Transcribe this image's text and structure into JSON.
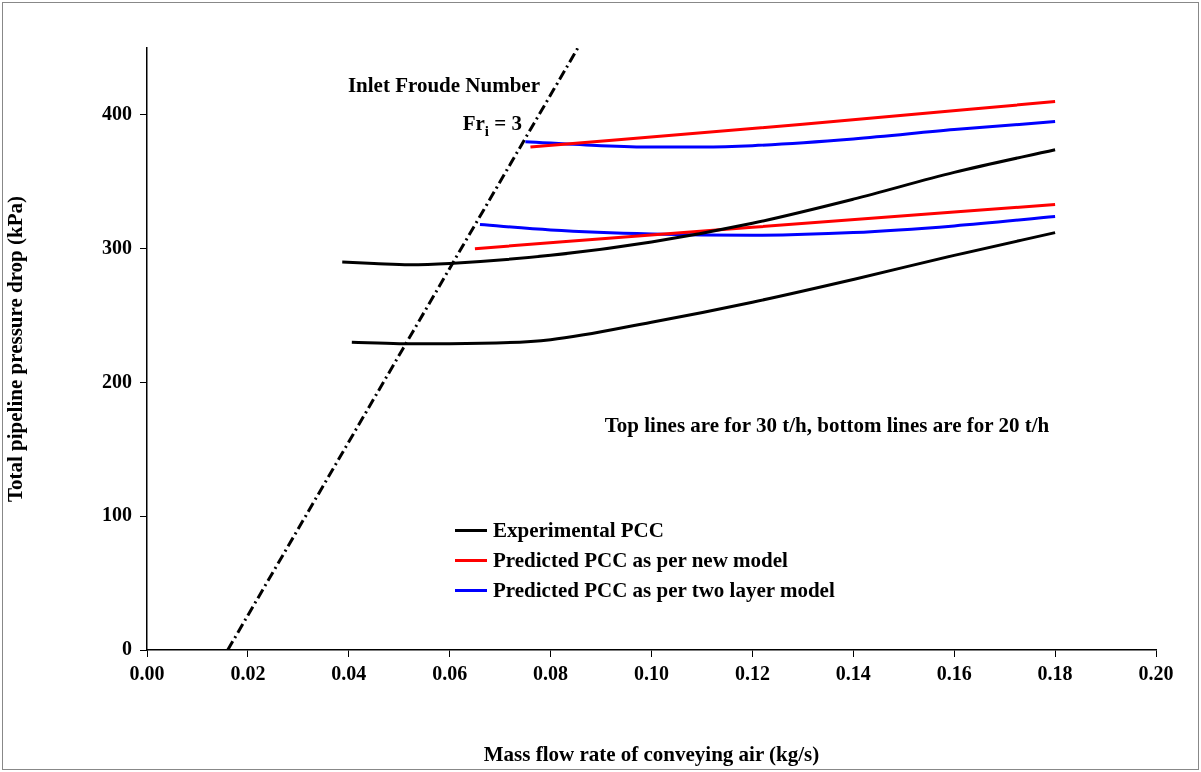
{
  "chart_data": {
    "type": "line",
    "xlabel": "Mass flow rate of conveying air (kg/s)",
    "ylabel": "Total pipeline pressure drop (kPa)",
    "xlim": [
      0,
      0.2
    ],
    "ylim": [
      0,
      450
    ],
    "xticks": [
      {
        "value": 0,
        "label": "0.00"
      },
      {
        "value": 0.02,
        "label": "0.02"
      },
      {
        "value": 0.04,
        "label": "0.04"
      },
      {
        "value": 0.06,
        "label": "0.06"
      },
      {
        "value": 0.08,
        "label": "0.08"
      },
      {
        "value": 0.1,
        "label": "0.10"
      },
      {
        "value": 0.12,
        "label": "0.12"
      },
      {
        "value": 0.14,
        "label": "0.14"
      },
      {
        "value": 0.16,
        "label": "0.16"
      },
      {
        "value": 0.18,
        "label": "0.18"
      },
      {
        "value": 0.2,
        "label": "0.20"
      }
    ],
    "yticks": [
      0,
      100,
      200,
      300,
      400
    ],
    "grid": false,
    "legend": "bottom",
    "marker": "none",
    "series": [
      {
        "name": "Experimental PCC",
        "color": "#000000",
        "x": [
          0.0387,
          0.045,
          0.052,
          0.06,
          0.08,
          0.1,
          0.12,
          0.14,
          0.16,
          0.18
        ],
        "values": [
          290,
          289,
          288,
          289,
          295,
          305,
          319,
          337,
          357,
          374
        ]
      },
      {
        "color": "#000000",
        "x": [
          0.0406,
          0.05,
          0.06,
          0.08,
          0.1,
          0.12,
          0.14,
          0.16,
          0.18
        ],
        "values": [
          230,
          229,
          229,
          232,
          245,
          260,
          277,
          295,
          312
        ]
      },
      {
        "name": "Predicted PCC as per new model",
        "color": "#ff0000",
        "x": [
          0.076,
          0.13,
          0.18
        ],
        "values": [
          376,
          393,
          410
        ]
      },
      {
        "color": "#ff0000",
        "x": [
          0.065,
          0.12,
          0.18
        ],
        "values": [
          300,
          316,
          333
        ]
      },
      {
        "name": "Predicted PCC as per two layer model",
        "color": "#0000ff",
        "x": [
          0.075,
          0.09,
          0.1,
          0.11,
          0.12,
          0.14,
          0.16,
          0.18
        ],
        "values": [
          380,
          377,
          376,
          376,
          377,
          382,
          389,
          395
        ]
      },
      {
        "color": "#0000ff",
        "x": [
          0.066,
          0.08,
          0.1,
          0.12,
          0.14,
          0.16,
          0.18
        ],
        "values": [
          318,
          314,
          311,
          310,
          312,
          317,
          324
        ]
      },
      {
        "color": "#000000",
        "line_style": "dashed",
        "x": [
          0.016,
          0.0854
        ],
        "values": [
          0,
          450
        ]
      }
    ],
    "annotations": [
      "Inlet Froude Number",
      "Fr$_{i}$ = 3",
      "Top lines are for 30 t/h, bottom lines are for 20 t/h"
    ]
  }
}
